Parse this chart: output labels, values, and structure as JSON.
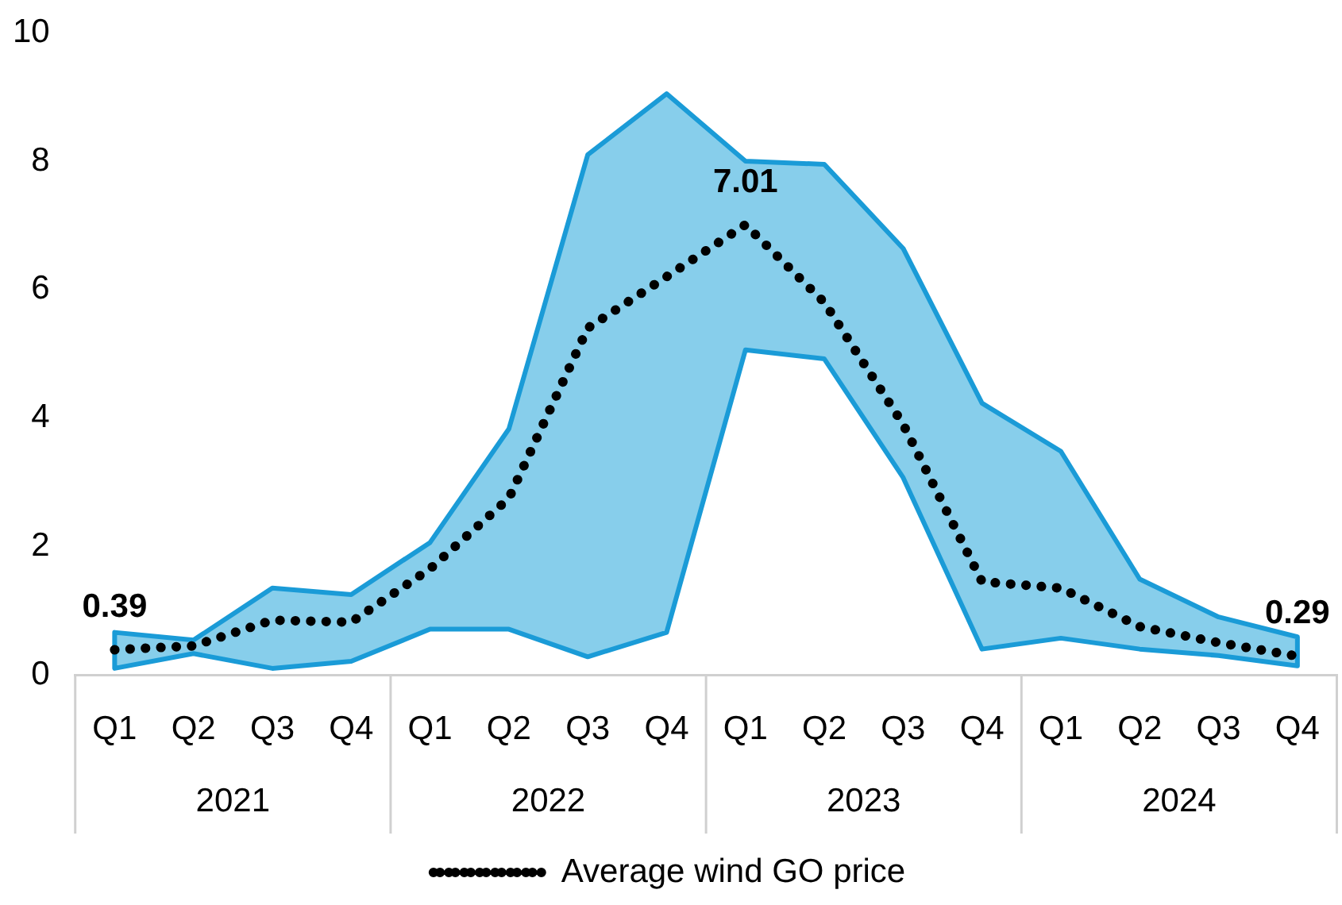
{
  "chart_data": {
    "type": "line",
    "categories": [
      "Q1",
      "Q2",
      "Q3",
      "Q4",
      "Q1",
      "Q2",
      "Q3",
      "Q4",
      "Q1",
      "Q2",
      "Q3",
      "Q4",
      "Q1",
      "Q2",
      "Q3",
      "Q4"
    ],
    "annotations": [
      "2021",
      "2022",
      "2023",
      "2024"
    ],
    "series": [
      {
        "name": "Average wind GO price",
        "color": "#000000",
        "line_style": "dotted",
        "marker": "none",
        "values": [
          0.39,
          0.45,
          0.85,
          0.82,
          1.65,
          2.75,
          5.4,
          6.2,
          7.01,
          5.8,
          3.9,
          1.45,
          1.35,
          0.75,
          0.5,
          0.29
        ],
        "value_labels": [
          "0.39",
          null,
          null,
          null,
          null,
          null,
          null,
          null,
          "7.01",
          null,
          null,
          null,
          null,
          null,
          null,
          "0.29"
        ],
        "lower": [
          0.1,
          0.33,
          0.1,
          0.21,
          0.71,
          0.71,
          0.28,
          0.66,
          5.06,
          4.92,
          3.07,
          0.4,
          0.57,
          0.4,
          0.3,
          0.14
        ],
        "upper": [
          0.66,
          0.54,
          1.35,
          1.25,
          2.06,
          3.83,
          8.1,
          9.05,
          8.0,
          7.95,
          6.64,
          4.23,
          3.48,
          1.49,
          0.9,
          0.59
        ]
      }
    ],
    "ylim": [
      0,
      10
    ],
    "yticks": [
      0,
      2,
      4,
      6,
      8,
      10
    ],
    "grid": false,
    "legend": "bottom"
  }
}
